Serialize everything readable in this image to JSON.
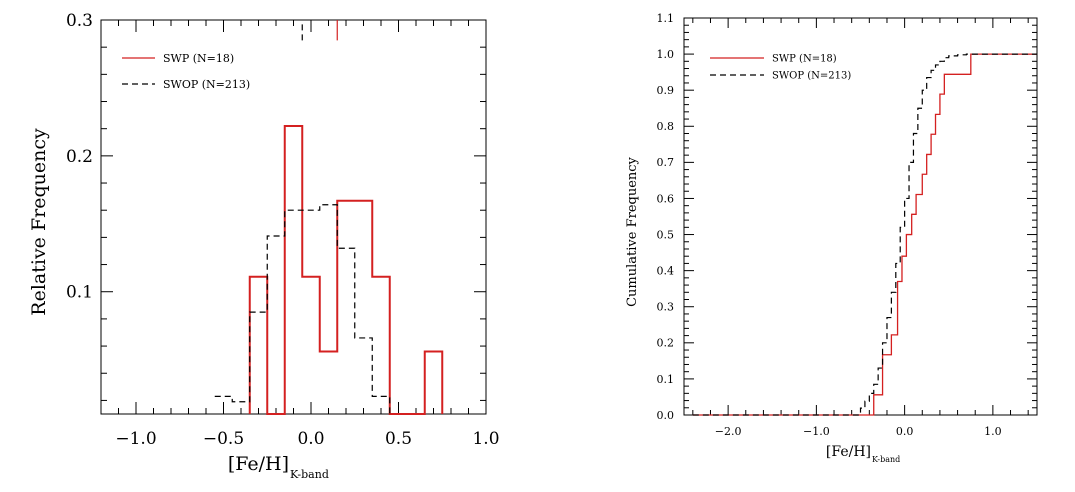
{
  "chart_data": [
    {
      "type": "histogram",
      "xlabel_main": "[Fe/H]",
      "xlabel_sub": "K-band",
      "ylabel": "Relative Frequency",
      "xlim": [
        -1.2,
        1.0
      ],
      "ylim": [
        0.01,
        0.3
      ],
      "x_ticks": [
        -1.0,
        -0.5,
        0.0,
        0.5,
        1.0
      ],
      "x_tick_labels": [
        "−1.0",
        "−0.5",
        "0.0",
        "0.5",
        "1.0"
      ],
      "y_ticks": [
        0.1,
        0.2,
        0.3
      ],
      "y_tick_labels": [
        "0.1",
        "0.2",
        "0.3"
      ],
      "legend": [
        {
          "label": "SWP (N=18)",
          "color": "#d42020",
          "dash": "solid"
        },
        {
          "label": "SWOP (N=213)",
          "color": "#000000",
          "dash": "dashed"
        }
      ],
      "series": [
        {
          "name": "SWP (N=18)",
          "color": "#d42020",
          "dash": "solid",
          "steps": [
            [
              -0.35,
              0.01
            ],
            [
              -0.35,
              0.111
            ],
            [
              -0.25,
              0.111
            ],
            [
              -0.25,
              0.01
            ],
            [
              -0.15,
              0.01
            ],
            [
              -0.15,
              0.222
            ],
            [
              -0.05,
              0.222
            ],
            [
              -0.05,
              0.111
            ],
            [
              0.05,
              0.111
            ],
            [
              0.05,
              0.056
            ],
            [
              0.15,
              0.056
            ],
            [
              0.15,
              0.167
            ],
            [
              0.35,
              0.167
            ],
            [
              0.35,
              0.111
            ],
            [
              0.45,
              0.111
            ],
            [
              0.45,
              0.01
            ],
            [
              0.65,
              0.01
            ],
            [
              0.65,
              0.056
            ],
            [
              0.75,
              0.056
            ],
            [
              0.75,
              0.01
            ]
          ],
          "marker_top": [
            [
              0.15,
              0.285
            ],
            [
              0.15,
              0.31
            ]
          ]
        },
        {
          "name": "SWOP (N=213)",
          "color": "#000000",
          "dash": "dashed",
          "steps": [
            [
              -0.55,
              0.023
            ],
            [
              -0.45,
              0.023
            ],
            [
              -0.45,
              0.019
            ],
            [
              -0.35,
              0.019
            ],
            [
              -0.35,
              0.085
            ],
            [
              -0.25,
              0.085
            ],
            [
              -0.25,
              0.141
            ],
            [
              -0.15,
              0.141
            ],
            [
              -0.15,
              0.16
            ],
            [
              0.05,
              0.16
            ],
            [
              0.05,
              0.164
            ],
            [
              0.15,
              0.164
            ],
            [
              0.15,
              0.132
            ],
            [
              0.25,
              0.132
            ],
            [
              0.25,
              0.066
            ],
            [
              0.35,
              0.066
            ],
            [
              0.35,
              0.023
            ],
            [
              0.45,
              0.023
            ],
            [
              0.45,
              0.01
            ]
          ],
          "marker_top": [
            [
              -0.05,
              0.285
            ],
            [
              -0.05,
              0.31
            ]
          ]
        }
      ]
    },
    {
      "type": "line",
      "xlabel_main": "[Fe/H]",
      "xlabel_sub": "K-band",
      "ylabel": "Cumulative Frequency",
      "xlim": [
        -2.5,
        1.5
      ],
      "ylim": [
        0.0,
        1.1
      ],
      "x_ticks": [
        -2.0,
        -1.0,
        0.0,
        1.0
      ],
      "x_tick_labels": [
        "−2.0",
        "−1.0",
        "0.0",
        "1.0"
      ],
      "y_ticks": [
        0.0,
        0.1,
        0.2,
        0.3,
        0.4,
        0.5,
        0.6,
        0.7,
        0.8,
        0.9,
        1.0,
        1.1
      ],
      "y_tick_labels": [
        "0.0",
        "0.1",
        "0.2",
        "0.3",
        "0.4",
        "0.5",
        "0.6",
        "0.7",
        "0.8",
        "0.9",
        "1.0",
        "1.1"
      ],
      "legend": [
        {
          "label": "SWP (N=18)",
          "color": "#d42020",
          "dash": "solid"
        },
        {
          "label": "SWOP (N=213)",
          "color": "#000000",
          "dash": "dashed"
        }
      ],
      "series": [
        {
          "name": "SWP (N=18)",
          "color": "#d42020",
          "dash": "solid",
          "x": [
            -2.4,
            -0.35,
            -0.35,
            -0.25,
            -0.25,
            -0.15,
            -0.15,
            -0.08,
            -0.08,
            -0.03,
            -0.03,
            0.02,
            0.02,
            0.08,
            0.08,
            0.13,
            0.13,
            0.2,
            0.2,
            0.25,
            0.25,
            0.3,
            0.3,
            0.35,
            0.35,
            0.4,
            0.4,
            0.45,
            0.45,
            0.5,
            0.5,
            0.75,
            0.75,
            1.5
          ],
          "y": [
            0.0,
            0.0,
            0.056,
            0.056,
            0.167,
            0.167,
            0.222,
            0.222,
            0.37,
            0.37,
            0.44,
            0.44,
            0.5,
            0.5,
            0.556,
            0.556,
            0.611,
            0.611,
            0.667,
            0.667,
            0.722,
            0.722,
            0.778,
            0.778,
            0.833,
            0.833,
            0.889,
            0.889,
            0.944,
            0.944,
            0.944,
            0.944,
            1.0,
            1.0
          ]
        },
        {
          "name": "SWOP (N=213)",
          "color": "#000000",
          "dash": "dashed",
          "x": [
            -2.4,
            -0.55,
            -0.5,
            -0.45,
            -0.4,
            -0.35,
            -0.3,
            -0.25,
            -0.2,
            -0.15,
            -0.1,
            -0.05,
            0.0,
            0.05,
            0.1,
            0.15,
            0.2,
            0.25,
            0.3,
            0.35,
            0.4,
            0.45,
            0.5,
            0.6,
            0.7,
            0.8,
            1.5
          ],
          "y": [
            0.0,
            0.0,
            0.019,
            0.038,
            0.06,
            0.085,
            0.13,
            0.2,
            0.27,
            0.34,
            0.42,
            0.52,
            0.6,
            0.7,
            0.78,
            0.85,
            0.9,
            0.935,
            0.955,
            0.97,
            0.98,
            0.99,
            0.995,
            0.998,
            1.0,
            1.0,
            1.0
          ]
        }
      ]
    }
  ]
}
